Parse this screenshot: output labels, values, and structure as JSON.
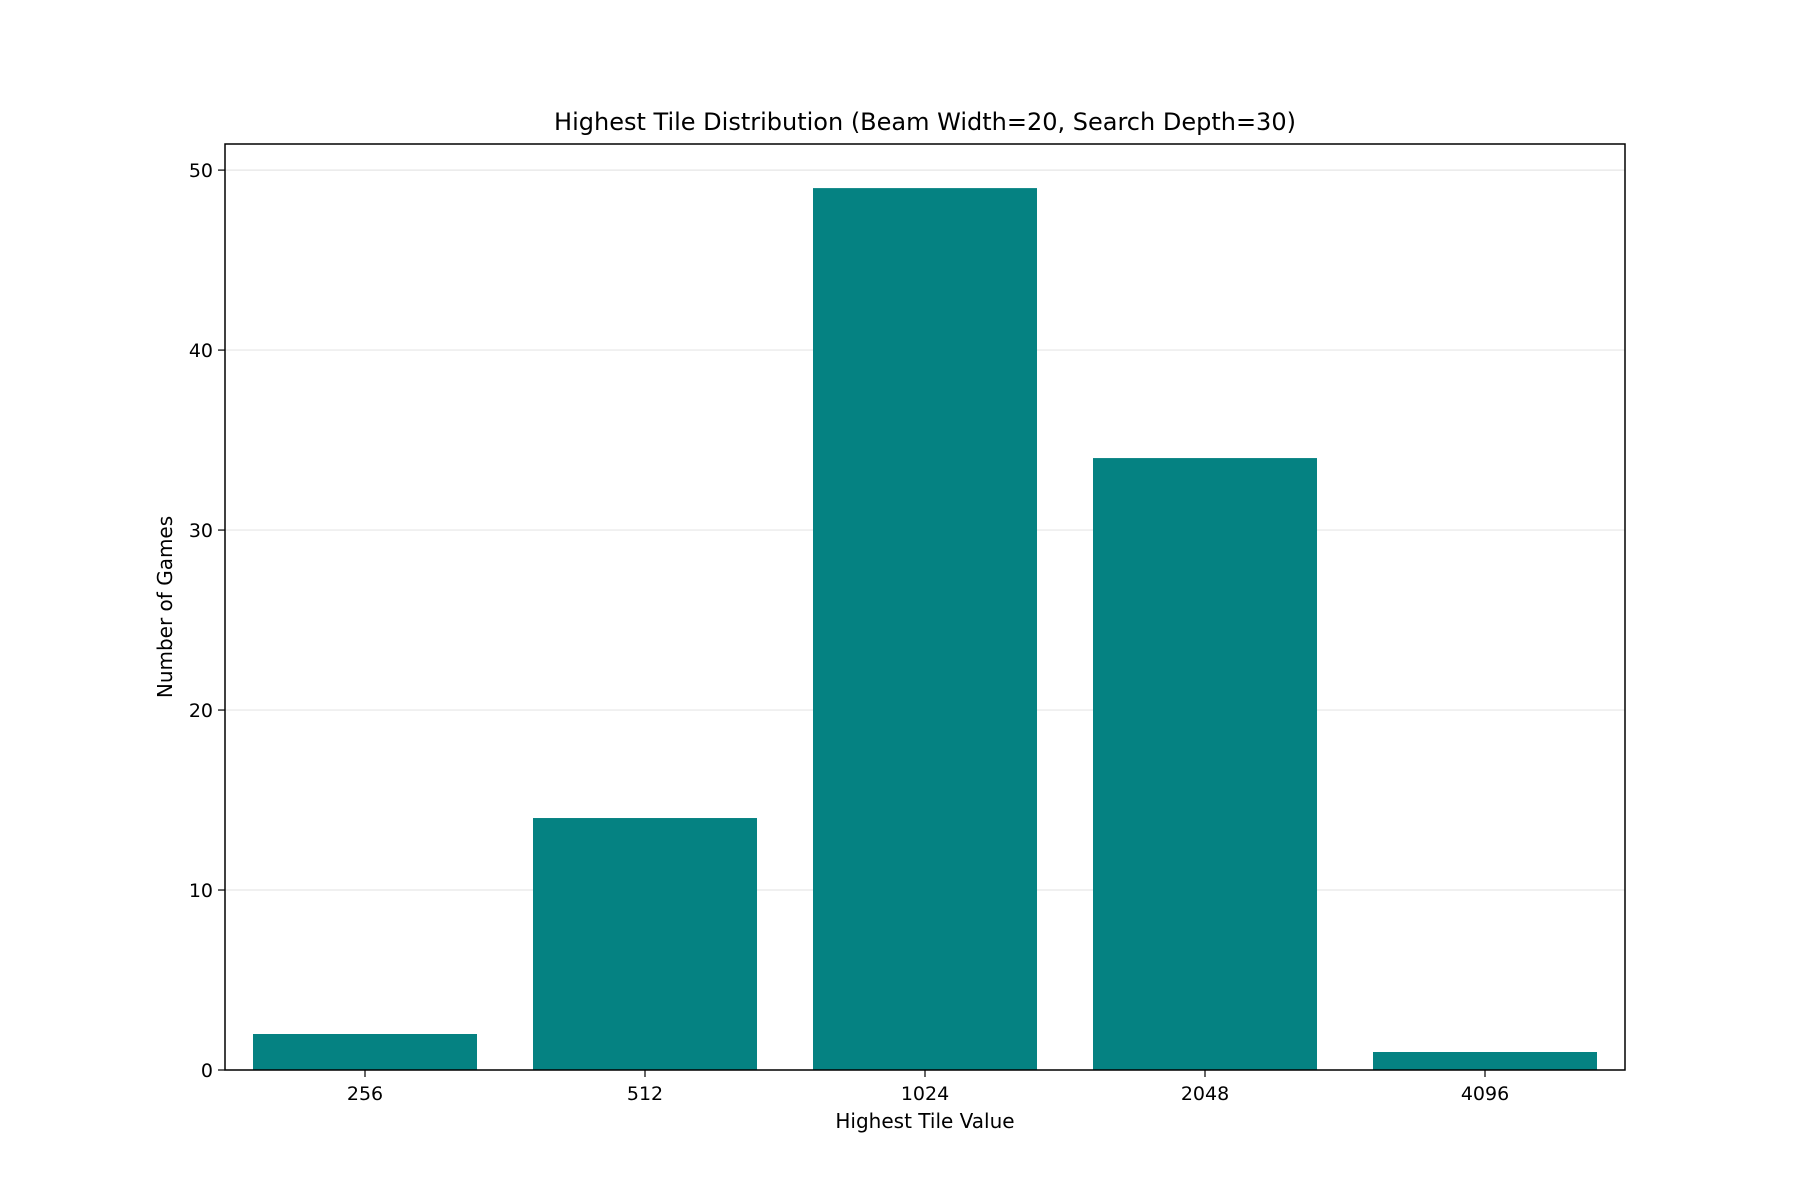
{
  "chart_data": {
    "type": "bar",
    "title": "Highest Tile Distribution (Beam Width=20, Search Depth=30)",
    "xlabel": "Highest Tile Value",
    "ylabel": "Number of Games",
    "categories": [
      "256",
      "512",
      "1024",
      "2048",
      "4096"
    ],
    "values": [
      2,
      14,
      49,
      34,
      1
    ],
    "ylim": [
      0,
      51.45
    ],
    "yticks": [
      0,
      10,
      20,
      30,
      40,
      50
    ],
    "grid": "y",
    "bar_color": "#008080",
    "legend": "none"
  }
}
